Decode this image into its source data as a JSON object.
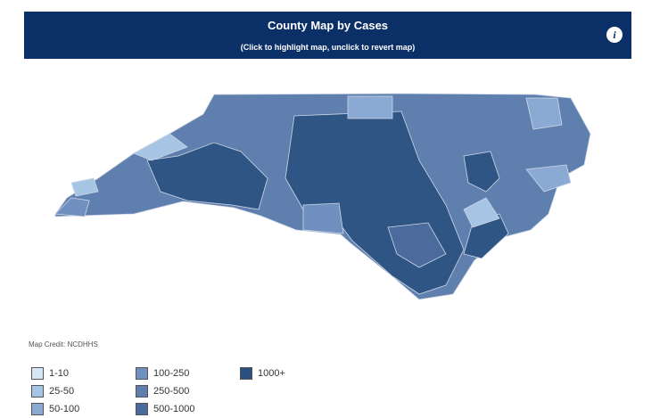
{
  "header": {
    "title": "County Map by Cases",
    "subtitle": "(Click to highlight map, unclick to revert map)",
    "info_icon": "i"
  },
  "map_credit": "Map Credit: NCDHHS",
  "legend": [
    {
      "label": "1-10",
      "color": "#d6e6f4"
    },
    {
      "label": "25-50",
      "color": "#a6c4e4"
    },
    {
      "label": "50-100",
      "color": "#8aaad4"
    },
    {
      "label": "100-250",
      "color": "#7090bf"
    },
    {
      "label": "250-500",
      "color": "#5f7fae"
    },
    {
      "label": "500-1000",
      "color": "#4a6b9c"
    },
    {
      "label": "1000+",
      "color": "#2a4f80"
    }
  ]
}
